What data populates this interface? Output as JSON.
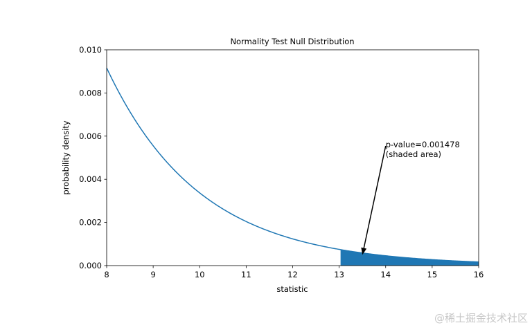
{
  "chart_data": {
    "type": "line",
    "title": "Normality Test Null Distribution",
    "xlabel": "statistic",
    "ylabel": "probability density",
    "xlim": [
      8,
      16
    ],
    "ylim": [
      0,
      0.01
    ],
    "xticks": [
      "8",
      "9",
      "10",
      "11",
      "12",
      "13",
      "14",
      "15",
      "16"
    ],
    "yticks": [
      "0.000",
      "0.002",
      "0.004",
      "0.006",
      "0.008",
      "0.010"
    ],
    "grid": false,
    "series": [
      {
        "x": [
          8,
          9,
          10,
          11,
          12,
          13,
          14,
          15,
          16
        ],
        "y": [
          0.009158,
          0.005554,
          0.003369,
          0.002043,
          0.001239,
          0.000752,
          0.000456,
          0.000277,
          0.000168
        ],
        "color": "#1f77b4"
      }
    ],
    "shaded_region": {
      "x_from": 13.03,
      "x_to": 16,
      "color": "#1f77b4"
    },
    "annotation": {
      "text_lines": [
        "p-value=0.001478",
        "(shaded area)"
      ],
      "text_xy": [
        14,
        0.005
      ],
      "arrow_tip_xy": [
        13.5,
        0.0005
      ]
    }
  },
  "watermark": "@稀土掘金技术社区"
}
